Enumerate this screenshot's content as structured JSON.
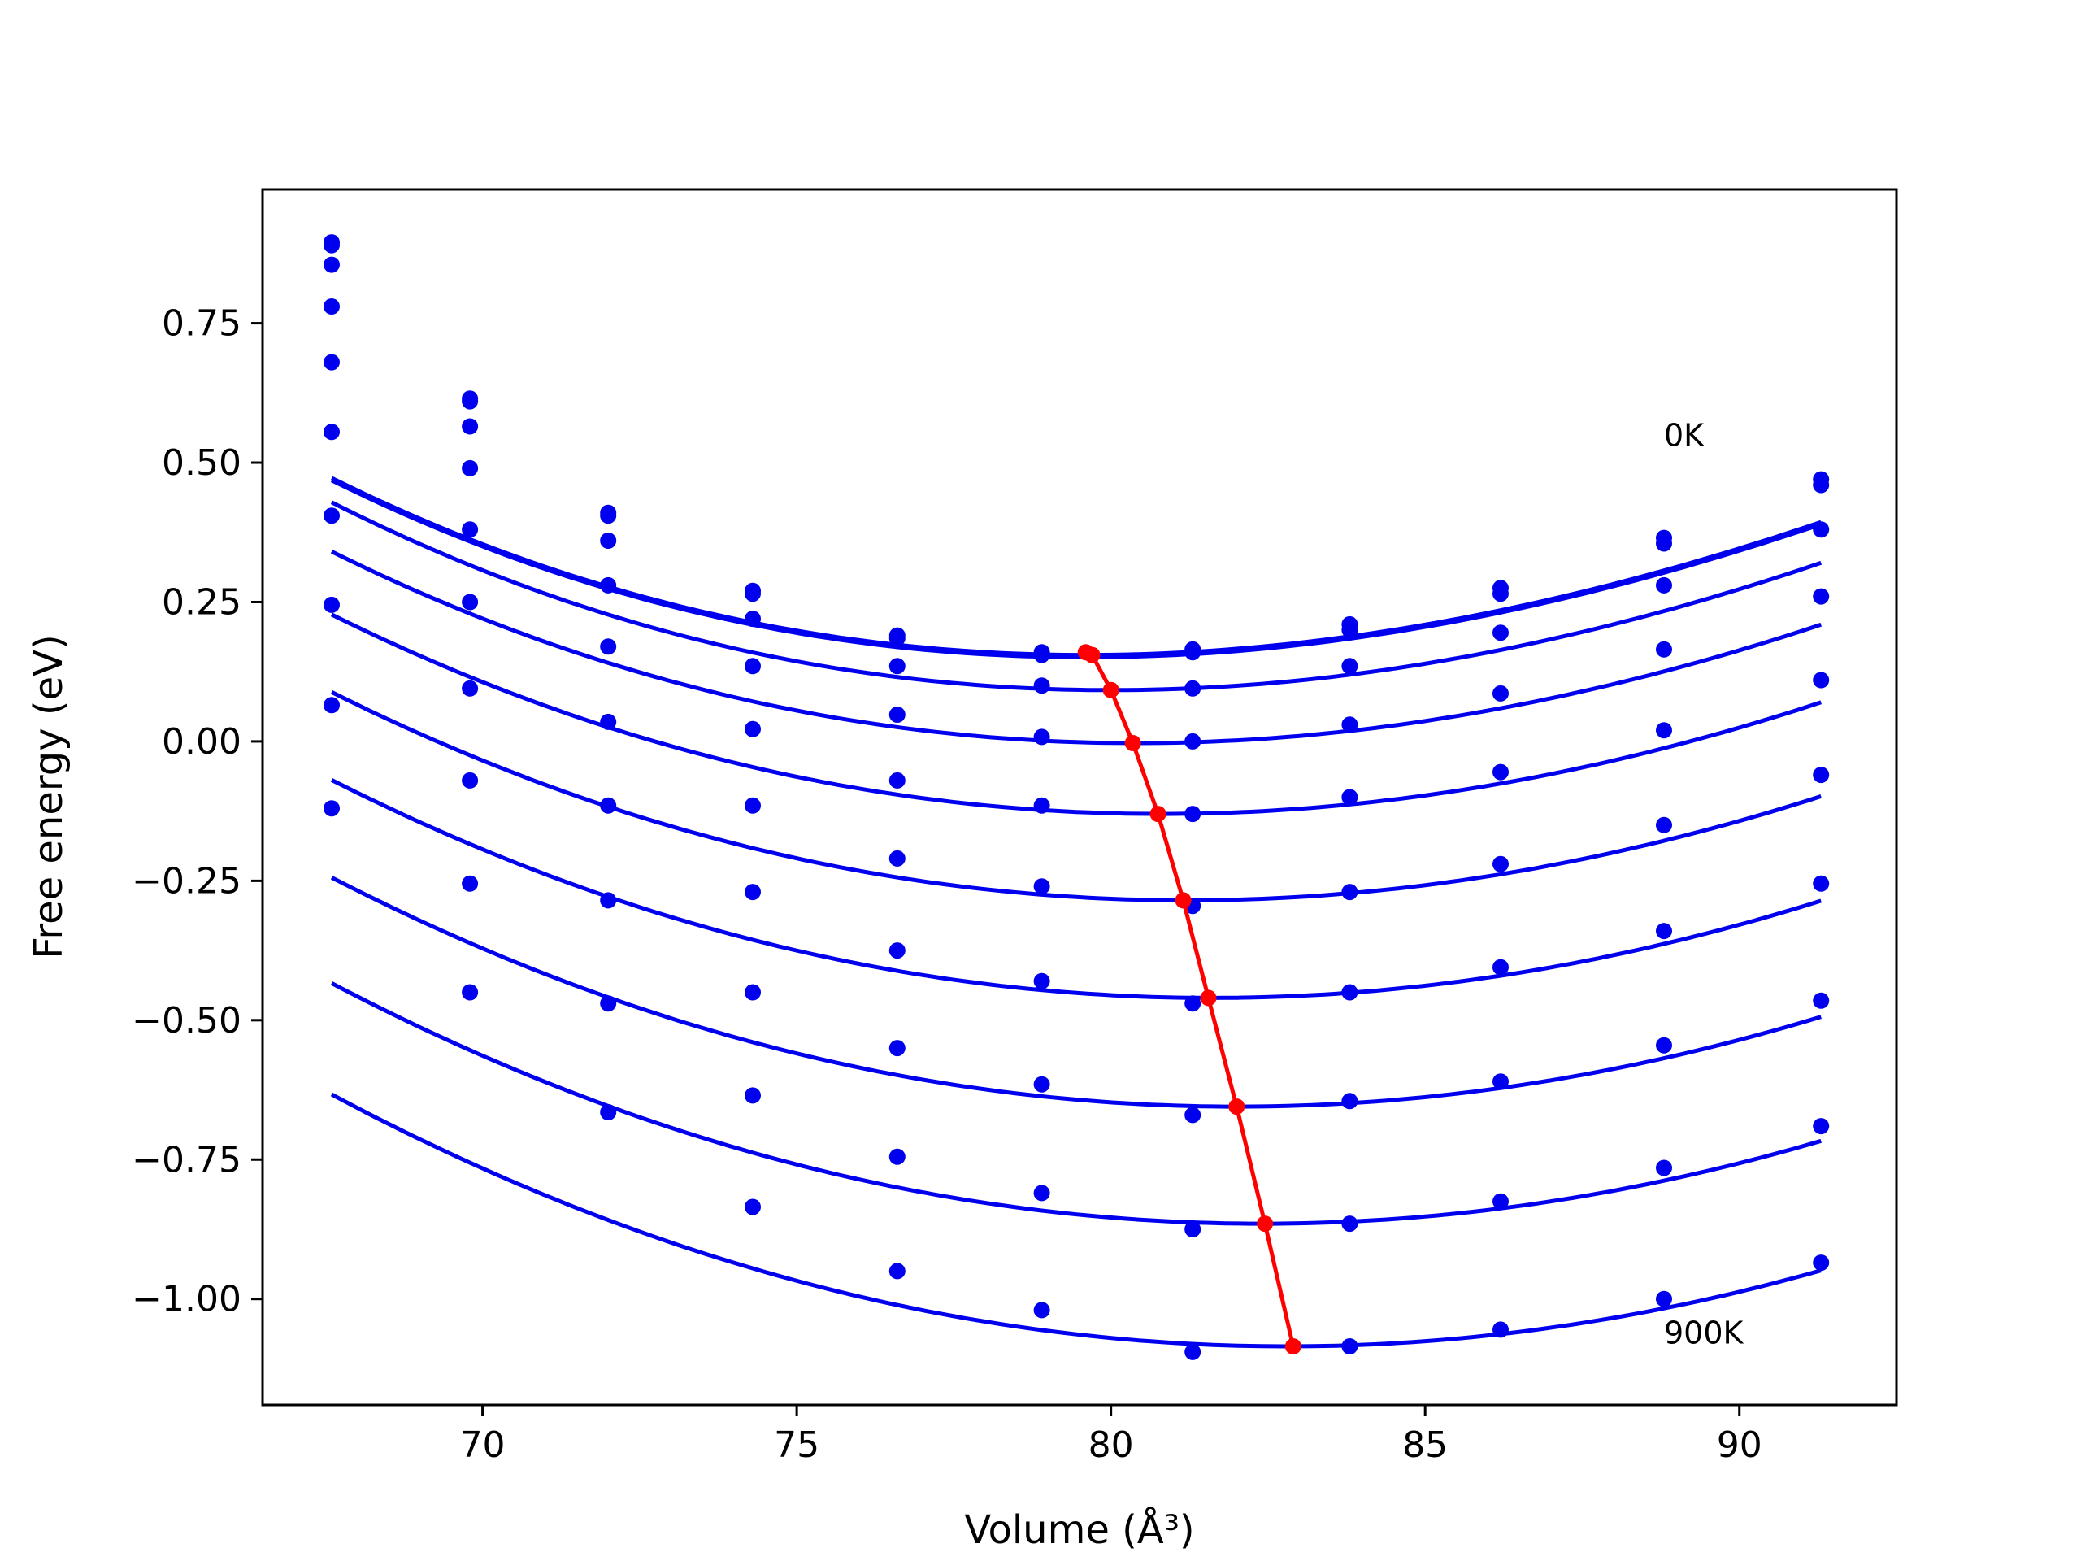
{
  "chart_data": {
    "type": "line",
    "title": "",
    "xlabel": "Volume (Å³)",
    "ylabel": "Free energy (eV)",
    "xlim": [
      66.5,
      92.5
    ],
    "ylim": [
      -1.19,
      0.99
    ],
    "x_ticks": [
      70,
      75,
      80,
      85,
      90
    ],
    "x_tick_labels": [
      "70",
      "75",
      "80",
      "85",
      "90"
    ],
    "y_ticks": [
      0.75,
      0.5,
      0.25,
      0.0,
      -0.25,
      -0.5,
      -0.75,
      -1.0
    ],
    "y_tick_labels": [
      "0.75",
      "0.50",
      "0.25",
      "0.00",
      "−0.25",
      "−0.50",
      "−0.75",
      "−1.00"
    ],
    "grid": false,
    "legend": "none",
    "colors": {
      "isotherm": "#0000ee",
      "minimum_path": "#ff0000",
      "frame": "#000000"
    },
    "annotations": [
      {
        "text": "0K",
        "x": 88.8,
        "y": 0.53
      },
      {
        "text": "900K",
        "x": 88.8,
        "y": -1.08
      }
    ],
    "volumes": [
      67.6,
      69.8,
      72.0,
      74.3,
      76.6,
      78.9,
      81.3,
      83.8,
      86.2,
      88.8,
      91.3
    ],
    "series": [
      {
        "points": [
          0.895,
          0.615,
          0.41,
          0.27,
          0.19,
          0.16,
          0.165,
          0.21,
          0.275,
          0.365,
          0.47
        ],
        "fit": {
          "v0": 79.6,
          "e0": 0.155,
          "a": 0.00197,
          "b": -1.95e-05
        }
      },
      {
        "points": [
          0.89,
          0.61,
          0.405,
          0.265,
          0.185,
          0.155,
          0.16,
          0.2,
          0.265,
          0.355,
          0.46
        ],
        "fit": {
          "v0": 79.6,
          "e0": 0.151,
          "a": 0.00197,
          "b": -1.95e-05
        }
      },
      {
        "points": [
          0.855,
          0.565,
          0.36,
          0.22,
          0.135,
          0.1,
          0.095,
          0.135,
          0.195,
          0.28,
          0.38
        ],
        "fit": {
          "v0": 80.0,
          "e0": 0.092,
          "a": 0.00198,
          "b": -1.7e-05
        }
      },
      {
        "points": [
          0.78,
          0.49,
          0.28,
          0.135,
          0.048,
          0.008,
          0.0,
          0.03,
          0.086,
          0.165,
          0.26
        ],
        "fit": {
          "v0": 80.4,
          "e0": -0.003,
          "a": 0.00193,
          "b": -1.3e-05
        }
      },
      {
        "points": [
          0.68,
          0.38,
          0.17,
          0.022,
          -0.07,
          -0.115,
          -0.13,
          -0.1,
          -0.055,
          0.02,
          0.11
        ],
        "fit": {
          "v0": 80.8,
          "e0": -0.13,
          "a": 0.00192,
          "b": -1e-05
        }
      },
      {
        "points": [
          0.555,
          0.25,
          0.035,
          -0.115,
          -0.21,
          -0.26,
          -0.295,
          -0.27,
          -0.22,
          -0.15,
          -0.06
        ],
        "fit": {
          "v0": 81.2,
          "e0": -0.285,
          "a": 0.00191,
          "b": -8e-06
        }
      },
      {
        "points": [
          0.405,
          0.095,
          -0.115,
          -0.27,
          -0.375,
          -0.43,
          -0.47,
          -0.45,
          -0.405,
          -0.34,
          -0.255
        ],
        "fit": {
          "v0": 81.6,
          "e0": -0.46,
          "a": 0.00191,
          "b": -6e-06
        }
      },
      {
        "points": [
          0.245,
          -0.07,
          -0.285,
          -0.45,
          -0.55,
          -0.615,
          -0.67,
          -0.645,
          -0.61,
          -0.545,
          -0.465
        ],
        "fit": {
          "v0": 82.0,
          "e0": -0.655,
          "a": 0.00191,
          "b": -5e-06
        }
      },
      {
        "points": [
          0.065,
          -0.255,
          -0.47,
          -0.635,
          -0.745,
          -0.81,
          -0.875,
          -0.865,
          -0.825,
          -0.765,
          -0.69
        ],
        "fit": {
          "v0": 82.4,
          "e0": -0.865,
          "a": 0.00191,
          "b": -4e-06
        }
      },
      {
        "points": [
          -0.12,
          -0.45,
          -0.665,
          -0.835,
          -0.95,
          -1.02,
          -1.095,
          -1.085,
          -1.055,
          -1.0,
          -0.935
        ],
        "fit": {
          "v0": 82.8,
          "e0": -1.085,
          "a": 0.00191,
          "b": -3e-06
        }
      }
    ],
    "minimum_path": {
      "x": [
        79.6,
        79.7,
        80.0,
        80.35,
        80.75,
        81.15,
        81.55,
        82.0,
        82.45,
        82.9
      ],
      "y": [
        0.16,
        0.155,
        0.092,
        -0.003,
        -0.13,
        -0.285,
        -0.46,
        -0.655,
        -0.865,
        -1.085
      ]
    }
  }
}
